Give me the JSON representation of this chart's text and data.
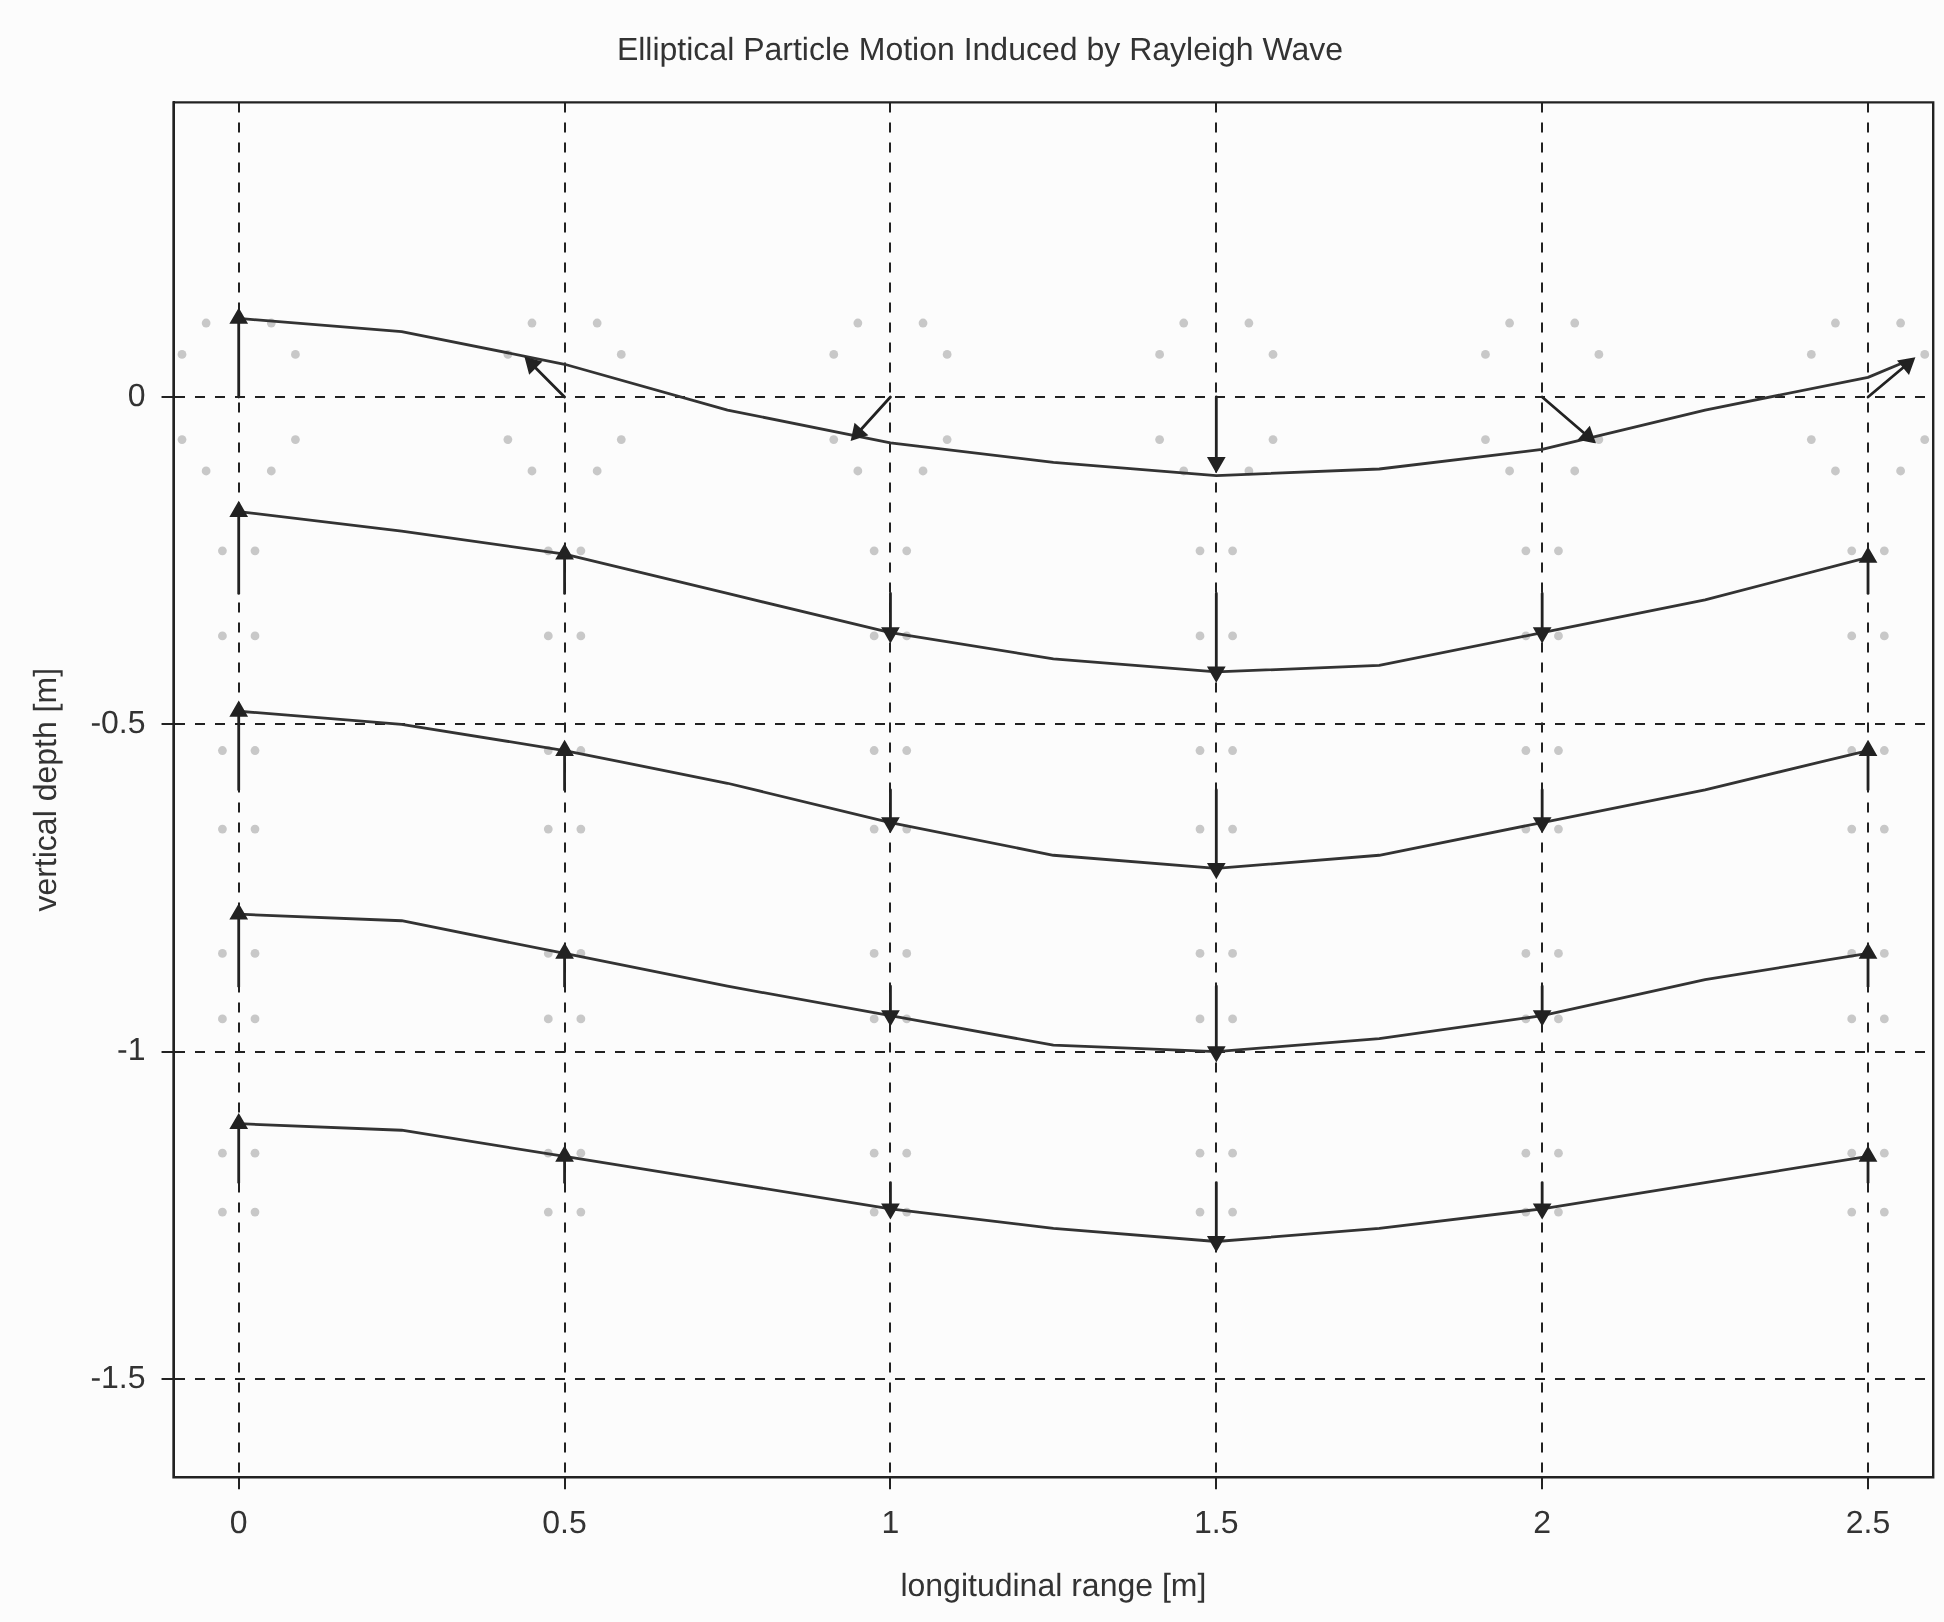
{
  "chart_data": {
    "type": "line",
    "title": "Elliptical Particle Motion Induced by Rayleigh Wave",
    "xlabel": "longitudinal range [m]",
    "ylabel": "vertical depth [m]",
    "xlim": [
      -0.1,
      2.6
    ],
    "ylim": [
      -1.65,
      0.45
    ],
    "xticks": [
      0,
      0.5,
      1,
      1.5,
      2,
      2.5
    ],
    "yticks": [
      -1.5,
      -1,
      -0.5,
      0
    ],
    "grid": true,
    "legend": false,
    "series": [
      {
        "type": "scatter",
        "color": "#c8c8c8",
        "marker": "circle",
        "x": [
          0.05,
          0.087,
          0.087,
          0.05,
          -0.05,
          -0.087,
          -0.087,
          -0.05
        ],
        "values": [
          0.113,
          0.065,
          -0.065,
          -0.113,
          -0.113,
          -0.065,
          0.065,
          0.113
        ]
      },
      {
        "type": "scatter",
        "color": "#c8c8c8",
        "marker": "circle",
        "x": [
          0.55,
          0.587,
          0.587,
          0.55,
          0.45,
          0.413,
          0.413,
          0.45
        ],
        "values": [
          0.113,
          0.065,
          -0.065,
          -0.113,
          -0.113,
          -0.065,
          0.065,
          0.113
        ]
      },
      {
        "type": "scatter",
        "color": "#c8c8c8",
        "marker": "circle",
        "x": [
          1.05,
          1.087,
          1.087,
          1.05,
          0.95,
          0.913,
          0.913,
          0.95
        ],
        "values": [
          0.113,
          0.065,
          -0.065,
          -0.113,
          -0.113,
          -0.065,
          0.065,
          0.113
        ]
      },
      {
        "type": "scatter",
        "color": "#c8c8c8",
        "marker": "circle",
        "x": [
          1.55,
          1.587,
          1.587,
          1.55,
          1.45,
          1.413,
          1.413,
          1.45
        ],
        "values": [
          0.113,
          0.065,
          -0.065,
          -0.113,
          -0.113,
          -0.065,
          0.065,
          0.113
        ]
      },
      {
        "type": "scatter",
        "color": "#c8c8c8",
        "marker": "circle",
        "x": [
          2.05,
          2.087,
          2.087,
          2.05,
          1.95,
          1.913,
          1.913,
          1.95
        ],
        "values": [
          0.113,
          0.065,
          -0.065,
          -0.113,
          -0.113,
          -0.065,
          0.065,
          0.113
        ]
      },
      {
        "type": "scatter",
        "color": "#c8c8c8",
        "marker": "circle",
        "x": [
          2.55,
          2.587,
          2.587,
          2.55,
          2.45,
          2.413,
          2.413,
          2.45
        ],
        "values": [
          0.113,
          0.065,
          -0.065,
          -0.113,
          -0.113,
          -0.065,
          0.065,
          0.113
        ]
      },
      {
        "type": "scatter",
        "color": "#c8c8c8",
        "marker": "circle",
        "x": [
          0.025,
          0.025,
          -0.025,
          -0.025
        ],
        "values": [
          -0.235,
          -0.365,
          -0.365,
          -0.235
        ]
      },
      {
        "type": "scatter",
        "color": "#c8c8c8",
        "marker": "circle",
        "x": [
          0.525,
          0.525,
          0.475,
          0.475
        ],
        "values": [
          -0.235,
          -0.365,
          -0.365,
          -0.235
        ]
      },
      {
        "type": "scatter",
        "color": "#c8c8c8",
        "marker": "circle",
        "x": [
          1.025,
          1.025,
          0.975,
          0.975
        ],
        "values": [
          -0.235,
          -0.365,
          -0.365,
          -0.235
        ]
      },
      {
        "type": "scatter",
        "color": "#c8c8c8",
        "marker": "circle",
        "x": [
          1.525,
          1.525,
          1.475,
          1.475
        ],
        "values": [
          -0.235,
          -0.365,
          -0.365,
          -0.235
        ]
      },
      {
        "type": "scatter",
        "color": "#c8c8c8",
        "marker": "circle",
        "x": [
          2.025,
          2.025,
          1.975,
          1.975
        ],
        "values": [
          -0.235,
          -0.365,
          -0.365,
          -0.235
        ]
      },
      {
        "type": "scatter",
        "color": "#c8c8c8",
        "marker": "circle",
        "x": [
          2.525,
          2.525,
          2.475,
          2.475
        ],
        "values": [
          -0.235,
          -0.365,
          -0.365,
          -0.235
        ]
      },
      {
        "type": "scatter",
        "color": "#c8c8c8",
        "marker": "circle",
        "x": [
          0.025,
          0.025,
          -0.025,
          -0.025
        ],
        "values": [
          -0.54,
          -0.66,
          -0.66,
          -0.54
        ]
      },
      {
        "type": "scatter",
        "color": "#c8c8c8",
        "marker": "circle",
        "x": [
          0.525,
          0.525,
          0.475,
          0.475
        ],
        "values": [
          -0.54,
          -0.66,
          -0.66,
          -0.54
        ]
      },
      {
        "type": "scatter",
        "color": "#c8c8c8",
        "marker": "circle",
        "x": [
          1.025,
          1.025,
          0.975,
          0.975
        ],
        "values": [
          -0.54,
          -0.66,
          -0.66,
          -0.54
        ]
      },
      {
        "type": "scatter",
        "color": "#c8c8c8",
        "marker": "circle",
        "x": [
          1.525,
          1.525,
          1.475,
          1.475
        ],
        "values": [
          -0.54,
          -0.66,
          -0.66,
          -0.54
        ]
      },
      {
        "type": "scatter",
        "color": "#c8c8c8",
        "marker": "circle",
        "x": [
          2.025,
          2.025,
          1.975,
          1.975
        ],
        "values": [
          -0.54,
          -0.66,
          -0.66,
          -0.54
        ]
      },
      {
        "type": "scatter",
        "color": "#c8c8c8",
        "marker": "circle",
        "x": [
          2.525,
          2.525,
          2.475,
          2.475
        ],
        "values": [
          -0.54,
          -0.66,
          -0.66,
          -0.54
        ]
      },
      {
        "type": "scatter",
        "color": "#c8c8c8",
        "marker": "circle",
        "x": [
          0.025,
          0.025,
          -0.025,
          -0.025
        ],
        "values": [
          -0.85,
          -0.95,
          -0.95,
          -0.85
        ]
      },
      {
        "type": "scatter",
        "color": "#c8c8c8",
        "marker": "circle",
        "x": [
          0.525,
          0.525,
          0.475,
          0.475
        ],
        "values": [
          -0.85,
          -0.95,
          -0.95,
          -0.85
        ]
      },
      {
        "type": "scatter",
        "color": "#c8c8c8",
        "marker": "circle",
        "x": [
          1.025,
          1.025,
          0.975,
          0.975
        ],
        "values": [
          -0.85,
          -0.95,
          -0.95,
          -0.85
        ]
      },
      {
        "type": "scatter",
        "color": "#c8c8c8",
        "marker": "circle",
        "x": [
          1.525,
          1.525,
          1.475,
          1.475
        ],
        "values": [
          -0.85,
          -0.95,
          -0.95,
          -0.85
        ]
      },
      {
        "type": "scatter",
        "color": "#c8c8c8",
        "marker": "circle",
        "x": [
          2.025,
          2.025,
          1.975,
          1.975
        ],
        "values": [
          -0.85,
          -0.95,
          -0.95,
          -0.85
        ]
      },
      {
        "type": "scatter",
        "color": "#c8c8c8",
        "marker": "circle",
        "x": [
          2.525,
          2.525,
          2.475,
          2.475
        ],
        "values": [
          -0.85,
          -0.95,
          -0.95,
          -0.85
        ]
      },
      {
        "type": "scatter",
        "color": "#c8c8c8",
        "marker": "circle",
        "x": [
          0.025,
          0.025,
          -0.025,
          -0.025
        ],
        "values": [
          -1.155,
          -1.245,
          -1.245,
          -1.155
        ]
      },
      {
        "type": "scatter",
        "color": "#c8c8c8",
        "marker": "circle",
        "x": [
          0.525,
          0.525,
          0.475,
          0.475
        ],
        "values": [
          -1.155,
          -1.245,
          -1.245,
          -1.155
        ]
      },
      {
        "type": "scatter",
        "color": "#c8c8c8",
        "marker": "circle",
        "x": [
          1.025,
          1.025,
          0.975,
          0.975
        ],
        "values": [
          -1.155,
          -1.245,
          -1.245,
          -1.155
        ]
      },
      {
        "type": "scatter",
        "color": "#c8c8c8",
        "marker": "circle",
        "x": [
          1.525,
          1.525,
          1.475,
          1.475
        ],
        "values": [
          -1.155,
          -1.245,
          -1.245,
          -1.155
        ]
      },
      {
        "type": "scatter",
        "color": "#c8c8c8",
        "marker": "circle",
        "x": [
          2.025,
          2.025,
          1.975,
          1.975
        ],
        "values": [
          -1.155,
          -1.245,
          -1.245,
          -1.155
        ]
      },
      {
        "type": "scatter",
        "color": "#c8c8c8",
        "marker": "circle",
        "x": [
          2.525,
          2.525,
          2.475,
          2.475
        ],
        "values": [
          -1.155,
          -1.245,
          -1.245,
          -1.155
        ]
      },
      {
        "color": "#333333",
        "line_style": "solid",
        "marker": "none",
        "x": [
          0,
          0.25,
          0.5,
          0.75,
          1,
          1.25,
          1.5,
          1.75,
          2,
          2.25,
          2.5,
          2.56
        ],
        "values": [
          0.12,
          0.1,
          0.05,
          -0.02,
          -0.07,
          -0.1,
          -0.12,
          -0.11,
          -0.08,
          -0.02,
          0.03,
          0.055
        ]
      },
      {
        "color": "#333333",
        "line_style": "solid",
        "marker": "none",
        "x": [
          0,
          0.25,
          0.5,
          0.75,
          1,
          1.25,
          1.5,
          1.75,
          2,
          2.25,
          2.5
        ],
        "values": [
          -0.175,
          -0.205,
          -0.24,
          -0.3,
          -0.36,
          -0.4,
          -0.42,
          -0.41,
          -0.36,
          -0.31,
          -0.245
        ]
      },
      {
        "color": "#333333",
        "line_style": "solid",
        "marker": "none",
        "x": [
          0,
          0.25,
          0.5,
          0.75,
          1,
          1.25,
          1.5,
          1.75,
          2,
          2.25,
          2.5
        ],
        "values": [
          -0.48,
          -0.5,
          -0.54,
          -0.59,
          -0.65,
          -0.7,
          -0.72,
          -0.7,
          -0.65,
          -0.6,
          -0.54
        ]
      },
      {
        "color": "#333333",
        "line_style": "solid",
        "marker": "none",
        "x": [
          0,
          0.25,
          0.5,
          0.75,
          1,
          1.25,
          1.5,
          1.75,
          2,
          2.25,
          2.5
        ],
        "values": [
          -0.79,
          -0.8,
          -0.85,
          -0.9,
          -0.945,
          -0.99,
          -1,
          -0.98,
          -0.945,
          -0.89,
          -0.85
        ]
      },
      {
        "color": "#333333",
        "line_style": "solid",
        "marker": "none",
        "x": [
          0,
          0.25,
          0.5,
          0.75,
          1,
          1.25,
          1.5,
          1.75,
          2,
          2.25,
          2.5
        ],
        "values": [
          -1.11,
          -1.12,
          -1.16,
          -1.2,
          -1.24,
          -1.27,
          -1.29,
          -1.27,
          -1.24,
          -1.2,
          -1.16
        ]
      },
      {
        "color": "#222222",
        "line_style": "solid",
        "marker": "triangle",
        "x": [
          0,
          0
        ],
        "values": [
          0,
          0.12
        ]
      },
      {
        "color": "#222222",
        "line_style": "solid",
        "marker": "triangle",
        "x": [
          0.5,
          0.45
        ],
        "values": [
          0,
          0.05
        ]
      },
      {
        "color": "#222222",
        "line_style": "solid",
        "marker": "triangle",
        "x": [
          1,
          0.95
        ],
        "values": [
          0,
          -0.055
        ]
      },
      {
        "color": "#222222",
        "line_style": "solid",
        "marker": "triangle",
        "x": [
          1.5,
          1.5
        ],
        "values": [
          0,
          -0.1
        ]
      },
      {
        "color": "#222222",
        "line_style": "solid",
        "marker": "triangle",
        "x": [
          2,
          2.07
        ],
        "values": [
          0,
          -0.06
        ]
      },
      {
        "color": "#222222",
        "line_style": "solid",
        "marker": "triangle",
        "x": [
          2.5,
          2.56
        ],
        "values": [
          0,
          0.05
        ]
      },
      {
        "color": "#222222",
        "line_style": "solid",
        "marker": "triangle",
        "x": [
          0,
          0
        ],
        "values": [
          -0.3,
          -0.175
        ]
      },
      {
        "color": "#222222",
        "line_style": "solid",
        "marker": "triangle",
        "x": [
          0.5,
          0.5
        ],
        "values": [
          -0.3,
          -0.24
        ]
      },
      {
        "color": "#222222",
        "line_style": "solid",
        "marker": "triangle",
        "x": [
          1,
          1
        ],
        "values": [
          -0.3,
          -0.36
        ]
      },
      {
        "color": "#222222",
        "line_style": "solid",
        "marker": "triangle",
        "x": [
          1.5,
          1.5
        ],
        "values": [
          -0.3,
          -0.42
        ]
      },
      {
        "color": "#222222",
        "line_style": "solid",
        "marker": "triangle",
        "x": [
          2,
          2
        ],
        "values": [
          -0.3,
          -0.36
        ]
      },
      {
        "color": "#222222",
        "line_style": "solid",
        "marker": "triangle",
        "x": [
          2.5,
          2.5
        ],
        "values": [
          -0.3,
          -0.245
        ]
      },
      {
        "color": "#222222",
        "line_style": "solid",
        "marker": "triangle",
        "x": [
          0,
          0
        ],
        "values": [
          -0.6,
          -0.48
        ]
      },
      {
        "color": "#222222",
        "line_style": "solid",
        "marker": "triangle",
        "x": [
          0.5,
          0.5
        ],
        "values": [
          -0.6,
          -0.54
        ]
      },
      {
        "color": "#222222",
        "line_style": "solid",
        "marker": "triangle",
        "x": [
          1,
          1
        ],
        "values": [
          -0.6,
          -0.65
        ]
      },
      {
        "color": "#222222",
        "line_style": "solid",
        "marker": "triangle",
        "x": [
          1.5,
          1.5
        ],
        "values": [
          -0.6,
          -0.72
        ]
      },
      {
        "color": "#222222",
        "line_style": "solid",
        "marker": "triangle",
        "x": [
          2,
          2
        ],
        "values": [
          -0.6,
          -0.65
        ]
      },
      {
        "color": "#222222",
        "line_style": "solid",
        "marker": "triangle",
        "x": [
          2.5,
          2.5
        ],
        "values": [
          -0.6,
          -0.54
        ]
      },
      {
        "color": "#222222",
        "line_style": "solid",
        "marker": "triangle",
        "x": [
          0,
          0
        ],
        "values": [
          -0.9,
          -0.79
        ]
      },
      {
        "color": "#222222",
        "line_style": "solid",
        "marker": "triangle",
        "x": [
          0.5,
          0.5
        ],
        "values": [
          -0.9,
          -0.85
        ]
      },
      {
        "color": "#222222",
        "line_style": "solid",
        "marker": "triangle",
        "x": [
          1,
          1
        ],
        "values": [
          -0.9,
          -0.945
        ]
      },
      {
        "color": "#222222",
        "line_style": "solid",
        "marker": "triangle",
        "x": [
          1.5,
          1.5
        ],
        "values": [
          -0.9,
          -1
        ]
      },
      {
        "color": "#222222",
        "line_style": "solid",
        "marker": "triangle",
        "x": [
          2,
          2
        ],
        "values": [
          -0.9,
          -0.945
        ]
      },
      {
        "color": "#222222",
        "line_style": "solid",
        "marker": "triangle",
        "x": [
          2.5,
          2.5
        ],
        "values": [
          -0.9,
          -0.85
        ]
      },
      {
        "color": "#222222",
        "line_style": "solid",
        "marker": "triangle",
        "x": [
          0,
          0
        ],
        "values": [
          -1.2,
          -1.11
        ]
      },
      {
        "color": "#222222",
        "line_style": "solid",
        "marker": "triangle",
        "x": [
          0.5,
          0.5
        ],
        "values": [
          -1.2,
          -1.16
        ]
      },
      {
        "color": "#222222",
        "line_style": "solid",
        "marker": "triangle",
        "x": [
          1,
          1
        ],
        "values": [
          -1.2,
          -1.24
        ]
      },
      {
        "color": "#222222",
        "line_style": "solid",
        "marker": "triangle",
        "x": [
          1.5,
          1.5
        ],
        "values": [
          -1.2,
          -1.29
        ]
      },
      {
        "color": "#222222",
        "line_style": "solid",
        "marker": "triangle",
        "x": [
          2,
          2
        ],
        "values": [
          -1.2,
          -1.24
        ]
      },
      {
        "color": "#222222",
        "line_style": "solid",
        "marker": "triangle",
        "x": [
          2.5,
          2.5
        ],
        "values": [
          -1.2,
          -1.16
        ]
      }
    ]
  }
}
